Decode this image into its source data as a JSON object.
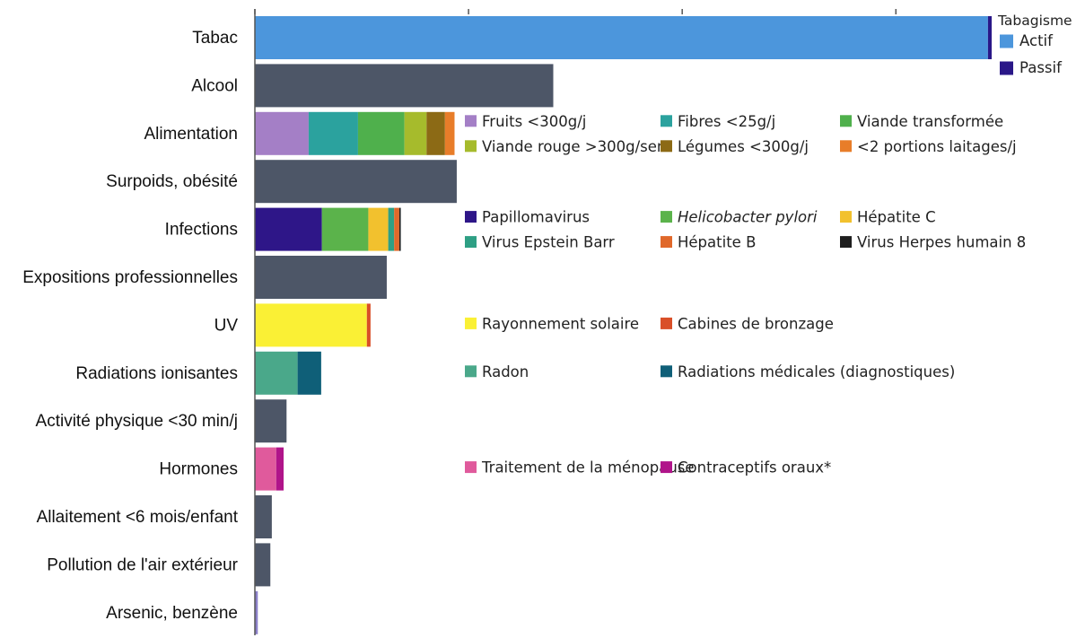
{
  "chart_data": {
    "type": "bar",
    "orientation": "horizontal",
    "stacked": true,
    "value_axis": {
      "min": 0,
      "max": 100,
      "tick_values": [
        0,
        29,
        58,
        87
      ],
      "tick_labels_visible": false
    },
    "grid": false,
    "colors": {
      "default_bar": "#4d5667",
      "Actif": "#4c96dc",
      "Passif": "#2a1788",
      "Fruits <300g/j": "#a47fc6",
      "Fibres <25g/j": "#2ba29e",
      "Viande transformée": "#4fb04c",
      "Viande rouge >300g/sem": "#a6bb2c",
      "Légumes <300g/j": "#8c6a15",
      "<2 portions laitages/j": "#e87d29",
      "Papillomavirus": "#2e1688",
      "Helicobacter pylori": "#5bb34b",
      "Hépatite C": "#f2c12e",
      "Virus Epstein Barr": "#2e9f84",
      "Hépatite B": "#e0682a",
      "Virus Herpes humain 8": "#1e1e1e",
      "Rayonnement solaire": "#faf035",
      "Cabines de bronzage": "#d94f28",
      "Radon": "#4aa88a",
      "Radiations médicales (diagnostiques)": "#0f5f78",
      "Traitement de la ménopause": "#e05a9c",
      "Contraceptifs oraux*": "#b0148a",
      "Arsenic, benzène": "#8a7fc8"
    },
    "categories": [
      {
        "label": "Tabac",
        "segments": [
          {
            "name": "Actif",
            "value": 99.5
          },
          {
            "name": "Passif",
            "value": 0.5
          }
        ]
      },
      {
        "label": "Alcool",
        "segments": [
          {
            "name": "",
            "value": 40.5
          }
        ]
      },
      {
        "label": "Alimentation",
        "segments": [
          {
            "name": "Fruits <300g/j",
            "value": 7.3
          },
          {
            "name": "Fibres <25g/j",
            "value": 6.7
          },
          {
            "name": "Viande transformée",
            "value": 6.3
          },
          {
            "name": "Viande rouge >300g/sem",
            "value": 3.0
          },
          {
            "name": "Légumes <300g/j",
            "value": 2.5
          },
          {
            "name": "<2 portions laitages/j",
            "value": 1.3
          }
        ]
      },
      {
        "label": "Surpoids, obésité",
        "segments": [
          {
            "name": "",
            "value": 27.4
          }
        ]
      },
      {
        "label": "Infections",
        "segments": [
          {
            "name": "Papillomavirus",
            "value": 9.1
          },
          {
            "name": "Helicobacter pylori",
            "value": 6.3
          },
          {
            "name": "Hépatite C",
            "value": 2.7
          },
          {
            "name": "Virus Epstein Barr",
            "value": 0.8
          },
          {
            "name": "Hépatite B",
            "value": 0.7
          },
          {
            "name": "Virus Herpes humain 8",
            "value": 0.2
          }
        ]
      },
      {
        "label": "Expositions professionnelles",
        "segments": [
          {
            "name": "",
            "value": 17.9
          }
        ]
      },
      {
        "label": "UV",
        "segments": [
          {
            "name": "Rayonnement solaire",
            "value": 15.2
          },
          {
            "name": "Cabines de bronzage",
            "value": 0.5
          }
        ]
      },
      {
        "label": "Radiations ionisantes",
        "segments": [
          {
            "name": "Radon",
            "value": 5.8
          },
          {
            "name": "Radiations médicales (diagnostiques)",
            "value": 3.2
          }
        ]
      },
      {
        "label": "Activité physique <30 min/j",
        "segments": [
          {
            "name": "",
            "value": 4.3
          }
        ]
      },
      {
        "label": "Hormones",
        "segments": [
          {
            "name": "Traitement de la ménopause",
            "value": 2.9
          },
          {
            "name": "Contraceptifs oraux*",
            "value": 1.0
          }
        ]
      },
      {
        "label": "Allaitement <6 mois/enfant",
        "segments": [
          {
            "name": "",
            "value": 2.3
          }
        ]
      },
      {
        "label": "Pollution de l'air extérieur",
        "segments": [
          {
            "name": "",
            "value": 2.1
          }
        ]
      },
      {
        "label": "Arsenic, benzène",
        "segments": [
          {
            "name": "Arsenic, benzène",
            "value": 0.4
          }
        ]
      }
    ],
    "legends": [
      {
        "category": "Tabac",
        "title": "Tabagisme",
        "entries": [
          "Actif",
          "Passif"
        ]
      },
      {
        "category": "Alimentation",
        "entries": [
          [
            "Fruits <300g/j",
            "Fibres <25g/j",
            "Viande transformée"
          ],
          [
            "Viande rouge >300g/sem",
            "Légumes <300g/j",
            "<2 portions laitages/j"
          ]
        ]
      },
      {
        "category": "Infections",
        "entries": [
          [
            "Papillomavirus",
            "Helicobacter pylori",
            "Hépatite C"
          ],
          [
            "Virus Epstein Barr",
            "Hépatite B",
            "Virus Herpes humain 8"
          ]
        ],
        "italic": [
          "Helicobacter pylori"
        ]
      },
      {
        "category": "UV",
        "entries": [
          [
            "Rayonnement solaire",
            "Cabines de bronzage"
          ]
        ]
      },
      {
        "category": "Radiations ionisantes",
        "entries": [
          [
            "Radon",
            "Radiations médicales (diagnostiques)"
          ]
        ]
      },
      {
        "category": "Hormones",
        "entries": [
          [
            "Traitement de la ménopause",
            "Contraceptifs oraux*"
          ]
        ]
      }
    ]
  }
}
